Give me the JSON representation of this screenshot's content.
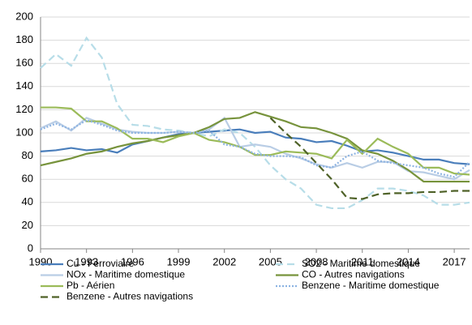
{
  "chart_data": {
    "type": "line",
    "x": [
      1990,
      1991,
      1992,
      1993,
      1994,
      1995,
      1996,
      1997,
      1998,
      1999,
      2000,
      2001,
      2002,
      2003,
      2004,
      2005,
      2006,
      2007,
      2008,
      2009,
      2010,
      2011,
      2012,
      2013,
      2014,
      2015,
      2016,
      2017,
      2018
    ],
    "xlim": [
      1990,
      2018
    ],
    "xticks": [
      1990,
      1993,
      1996,
      1999,
      2002,
      2005,
      2008,
      2011,
      2014,
      2017
    ],
    "ylim": [
      0,
      200
    ],
    "yticks": [
      0,
      20,
      40,
      60,
      80,
      100,
      120,
      140,
      160,
      180,
      200
    ],
    "grid": true,
    "series": [
      {
        "name": "Cu - Ferroviaire",
        "color": "#4a7ebb",
        "dash": "solid",
        "values": [
          84,
          85,
          87,
          85,
          86,
          83,
          90,
          93,
          96,
          99,
          100,
          101,
          102,
          103,
          100,
          101,
          96,
          95,
          92,
          93,
          89,
          84,
          85,
          83,
          80,
          77,
          77,
          74,
          73
        ]
      },
      {
        "name": "SO2 - Maritime domestique",
        "color": "#b7dde8",
        "dash": "dashed",
        "values": [
          156,
          168,
          158,
          182,
          165,
          125,
          107,
          106,
          103,
          102,
          100,
          97,
          103,
          100,
          88,
          72,
          60,
          52,
          38,
          35,
          35,
          42,
          52,
          52,
          50,
          46,
          38,
          38,
          40
        ]
      },
      {
        "name": "NOx - Maritime domestique",
        "color": "#b9cde5",
        "dash": "solid",
        "values": [
          104,
          110,
          102,
          113,
          108,
          103,
          101,
          100,
          100,
          101,
          100,
          103,
          113,
          88,
          90,
          88,
          82,
          78,
          73,
          70,
          74,
          70,
          75,
          75,
          67,
          66,
          63,
          60,
          68
        ]
      },
      {
        "name": "CO - Autres navigations",
        "color": "#77933c",
        "dash": "solid",
        "values": [
          72,
          75,
          78,
          82,
          84,
          88,
          91,
          93,
          96,
          98,
          100,
          105,
          112,
          113,
          118,
          114,
          110,
          105,
          104,
          100,
          95,
          85,
          82,
          76,
          68,
          58,
          58,
          58,
          58
        ]
      },
      {
        "name": "Pb - Aérien",
        "color": "#9bbb59",
        "dash": "solid",
        "values": [
          122,
          122,
          121,
          110,
          110,
          104,
          95,
          95,
          92,
          97,
          100,
          94,
          92,
          88,
          81,
          81,
          84,
          83,
          82,
          78,
          94,
          82,
          95,
          88,
          82,
          70,
          70,
          65,
          64
        ]
      },
      {
        "name": "Benzene - Maritime domestique",
        "color": "#8db3e2",
        "dash": "dotted",
        "values": [
          103,
          108,
          103,
          111,
          107,
          102,
          100,
          100,
          100,
          101,
          100,
          102,
          90,
          88,
          82,
          80,
          80,
          79,
          72,
          70,
          80,
          84,
          76,
          74,
          72,
          70,
          65,
          62,
          75
        ]
      },
      {
        "name": "Benzene - Autres navigations",
        "color": "#4f6228",
        "dash": "dashed",
        "values": [
          null,
          null,
          null,
          null,
          null,
          null,
          null,
          null,
          null,
          null,
          null,
          null,
          null,
          null,
          null,
          113,
          100,
          88,
          74,
          60,
          44,
          43,
          47,
          48,
          48,
          49,
          49,
          50,
          50
        ]
      }
    ]
  }
}
